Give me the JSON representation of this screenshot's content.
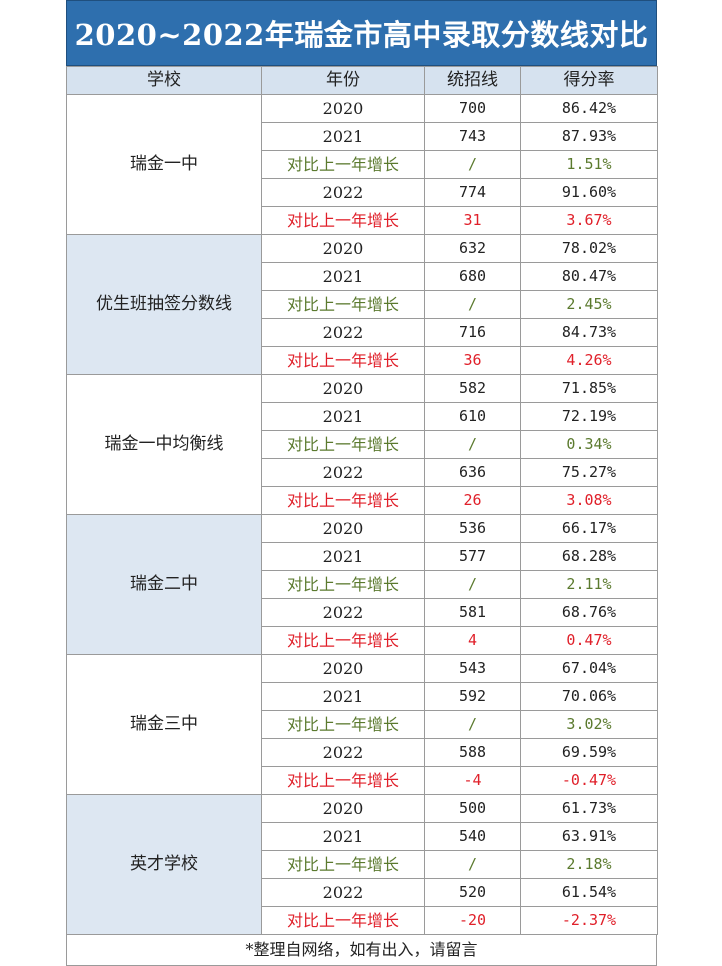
{
  "title": "2020~2022年瑞金市高中录取分数线对比",
  "headers": [
    "学校",
    "年份",
    "统招线",
    "得分率"
  ],
  "groups": [
    {
      "school": "瑞金一中",
      "rows": [
        {
          "year": "2020",
          "line": "700",
          "rate": "86.42%",
          "kind": "n"
        },
        {
          "year": "2021",
          "line": "743",
          "rate": "87.93%",
          "kind": "n"
        },
        {
          "year": "对比上一年增长",
          "line": "/",
          "rate": "1.51%",
          "kind": "g"
        },
        {
          "year": "2022",
          "line": "774",
          "rate": "91.60%",
          "kind": "n"
        },
        {
          "year": "对比上一年增长",
          "line": "31",
          "rate": "3.67%",
          "kind": "r"
        }
      ]
    },
    {
      "school": "优生班抽签分数线",
      "rows": [
        {
          "year": "2020",
          "line": "632",
          "rate": "78.02%",
          "kind": "n"
        },
        {
          "year": "2021",
          "line": "680",
          "rate": "80.47%",
          "kind": "n"
        },
        {
          "year": "对比上一年增长",
          "line": "/",
          "rate": "2.45%",
          "kind": "g"
        },
        {
          "year": "2022",
          "line": "716",
          "rate": "84.73%",
          "kind": "n"
        },
        {
          "year": "对比上一年增长",
          "line": "36",
          "rate": "4.26%",
          "kind": "r"
        }
      ]
    },
    {
      "school": "瑞金一中均衡线",
      "rows": [
        {
          "year": "2020",
          "line": "582",
          "rate": "71.85%",
          "kind": "n"
        },
        {
          "year": "2021",
          "line": "610",
          "rate": "72.19%",
          "kind": "n"
        },
        {
          "year": "对比上一年增长",
          "line": "/",
          "rate": "0.34%",
          "kind": "g"
        },
        {
          "year": "2022",
          "line": "636",
          "rate": "75.27%",
          "kind": "n"
        },
        {
          "year": "对比上一年增长",
          "line": "26",
          "rate": "3.08%",
          "kind": "r"
        }
      ]
    },
    {
      "school": "瑞金二中",
      "rows": [
        {
          "year": "2020",
          "line": "536",
          "rate": "66.17%",
          "kind": "n"
        },
        {
          "year": "2021",
          "line": "577",
          "rate": "68.28%",
          "kind": "n"
        },
        {
          "year": "对比上一年增长",
          "line": "/",
          "rate": "2.11%",
          "kind": "g"
        },
        {
          "year": "2022",
          "line": "581",
          "rate": "68.76%",
          "kind": "n"
        },
        {
          "year": "对比上一年增长",
          "line": "4",
          "rate": "0.47%",
          "kind": "r"
        }
      ]
    },
    {
      "school": "瑞金三中",
      "rows": [
        {
          "year": "2020",
          "line": "543",
          "rate": "67.04%",
          "kind": "n"
        },
        {
          "year": "2021",
          "line": "592",
          "rate": "70.06%",
          "kind": "n"
        },
        {
          "year": "对比上一年增长",
          "line": "/",
          "rate": "3.02%",
          "kind": "g"
        },
        {
          "year": "2022",
          "line": "588",
          "rate": "69.59%",
          "kind": "n"
        },
        {
          "year": "对比上一年增长",
          "line": "-4",
          "rate": "-0.47%",
          "kind": "r"
        }
      ]
    },
    {
      "school": "英才学校",
      "rows": [
        {
          "year": "2020",
          "line": "500",
          "rate": "61.73%",
          "kind": "n"
        },
        {
          "year": "2021",
          "line": "540",
          "rate": "63.91%",
          "kind": "n"
        },
        {
          "year": "对比上一年增长",
          "line": "/",
          "rate": "2.18%",
          "kind": "g"
        },
        {
          "year": "2022",
          "line": "520",
          "rate": "61.54%",
          "kind": "n"
        },
        {
          "year": "对比上一年增长",
          "line": "-20",
          "rate": "-2.37%",
          "kind": "r"
        }
      ]
    }
  ],
  "note": "*整理自网络，如有出入，请留言",
  "colors": {
    "title_bg": "#2e6fae",
    "header_bg": "#d6e2ef",
    "alt_group_bg": "#dde7f2",
    "green_text": "#5b7a2e",
    "red_text": "#e0202a"
  }
}
